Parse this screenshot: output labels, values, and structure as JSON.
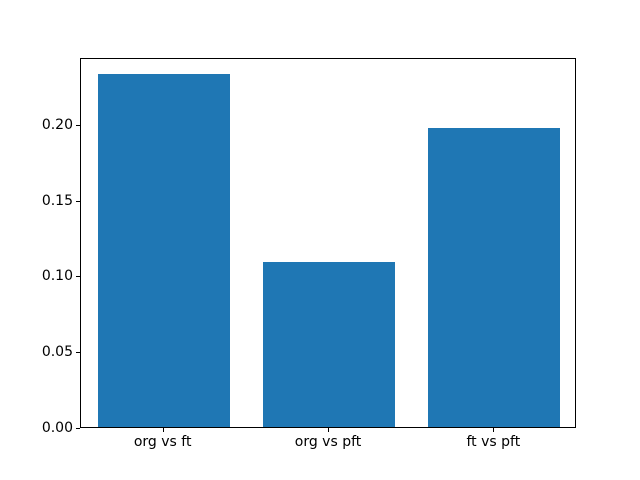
{
  "figure": {
    "background_color": "#ffffff",
    "spine_color": "#000000"
  },
  "chart_data": {
    "type": "bar",
    "title": "",
    "xlabel": "",
    "ylabel": "",
    "categories": [
      "org vs ft",
      "org vs pft",
      "ft vs pft"
    ],
    "values": [
      0.233,
      0.109,
      0.197
    ],
    "ylim": [
      0,
      0.244
    ],
    "yticks": [
      0.0,
      0.05,
      0.1,
      0.15,
      0.2
    ],
    "ytick_labels": [
      "0.00",
      "0.05",
      "0.10",
      "0.15",
      "0.20"
    ],
    "bar_color": "#1f77b4",
    "bar_width_fraction": 0.8,
    "grid": false,
    "legend": "none"
  }
}
